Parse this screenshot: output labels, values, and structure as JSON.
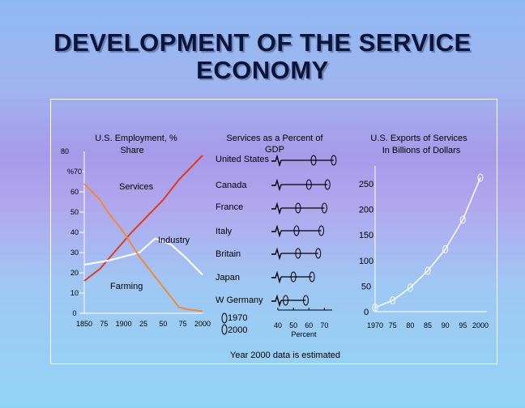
{
  "slide": {
    "title_line1": "DEVELOPMENT OF THE SERVICE",
    "title_line2": "ECONOMY"
  },
  "colors": {
    "services_line": "#e23a1e",
    "industry_line": "#ffffff",
    "farming_line": "#f08a3a",
    "axis": "#ffffff",
    "exports_line": "#ffffff"
  },
  "chart_data": [
    {
      "type": "line",
      "id": "employment",
      "title_line1": "U.S. Employment, %",
      "title_line2": "Share",
      "y_top_label": "80",
      "y_ticks": [
        "%70",
        "60",
        "50",
        "40",
        "30",
        "20",
        "10",
        "0"
      ],
      "y_values": [
        70,
        60,
        50,
        40,
        30,
        20,
        10,
        0
      ],
      "x_tick_labels": [
        "1850",
        "75",
        "1900",
        "25",
        "50",
        "75",
        "2000"
      ],
      "x_tick_years": [
        1850,
        1875,
        1900,
        1925,
        1950,
        1975,
        2000
      ],
      "ylim": [
        0,
        80
      ],
      "xlim": [
        1850,
        2000
      ],
      "series": [
        {
          "name": "Services",
          "x": [
            1850,
            1870,
            1890,
            1910,
            1930,
            1950,
            1970,
            1990,
            2000
          ],
          "y": [
            16,
            22,
            31,
            40,
            48,
            56,
            66,
            74,
            78
          ]
        },
        {
          "name": "Industry",
          "x": [
            1850,
            1880,
            1900,
            1920,
            1940,
            1960,
            1980,
            2000
          ],
          "y": [
            24,
            26,
            28,
            30,
            37,
            34,
            27,
            19
          ]
        },
        {
          "name": "Farming",
          "x": [
            1850,
            1870,
            1880,
            1900,
            1920,
            1940,
            1960,
            1970,
            1980,
            2000
          ],
          "y": [
            64,
            56,
            50,
            40,
            28,
            18,
            8,
            3,
            2,
            1
          ]
        }
      ]
    },
    {
      "type": "dot-range",
      "id": "gdp",
      "title_line1": "Services as a Percent of",
      "title_line2": "GDP",
      "rows": [
        {
          "country": "United States",
          "v1970": 63,
          "v2000": 76
        },
        {
          "country": "Canada",
          "v1970": 60,
          "v2000": 72
        },
        {
          "country": "France",
          "v1970": 53,
          "v2000": 70
        },
        {
          "country": "Italy",
          "v1970": 52,
          "v2000": 68
        },
        {
          "country": "Britain",
          "v1970": 53,
          "v2000": 66
        },
        {
          "country": "Japan",
          "v1970": 50,
          "v2000": 62
        },
        {
          "country": "W Germany",
          "v1970": 45,
          "v2000": 58
        }
      ],
      "legend": {
        "a": "1970",
        "b": "2000"
      },
      "x_ticks": [
        40,
        50,
        60,
        70
      ],
      "x_tick_labels": [
        "40",
        "50",
        "60",
        "70"
      ],
      "xlabel": "Percent",
      "xlim": [
        40,
        75
      ]
    },
    {
      "type": "line",
      "id": "exports",
      "title_line1": "U.S. Exports of Services",
      "title_line2": "In Billions of Dollars",
      "y_ticks": [
        0,
        50,
        100,
        150,
        200,
        250
      ],
      "y_tick_labels": [
        "0",
        "50",
        "100",
        "150",
        "200",
        "250"
      ],
      "x_tick_labels": [
        "1970",
        "75",
        "80",
        "85",
        "90",
        "95",
        "2000"
      ],
      "x_tick_years": [
        1970,
        1975,
        1980,
        1985,
        1990,
        1995,
        2000
      ],
      "ylim": [
        0,
        250
      ],
      "xlim": [
        1970,
        2000
      ],
      "series": [
        {
          "name": "Exports",
          "x": [
            1970,
            1975,
            1980,
            1985,
            1990,
            1995,
            2000
          ],
          "y": [
            8,
            22,
            47,
            80,
            122,
            180,
            262
          ]
        }
      ]
    }
  ],
  "footnote": "Year 2000 data is estimated"
}
